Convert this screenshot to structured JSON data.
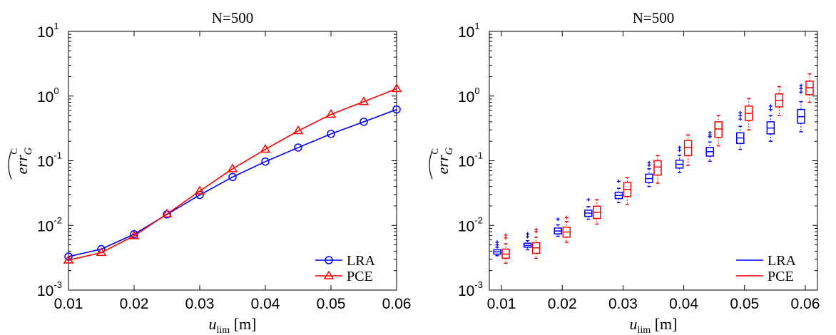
{
  "chart_data": [
    {
      "type": "line",
      "title": "N=500",
      "xlabel_var": "u",
      "xlabel_sub": "lim",
      "xlabel_unit": "[m]",
      "ylabel": "err",
      "ylabel_sub": "G",
      "ylabel_sup": "C",
      "x": [
        0.01,
        0.015,
        0.02,
        0.025,
        0.03,
        0.035,
        0.04,
        0.045,
        0.05,
        0.055,
        0.06
      ],
      "x_ticks": [
        "0.01",
        "0.02",
        "0.03",
        "0.04",
        "0.05",
        "0.06"
      ],
      "y_scale": "log",
      "y_ticks": [
        {
          "base": "10",
          "exp": "-3"
        },
        {
          "base": "10",
          "exp": "-2"
        },
        {
          "base": "10",
          "exp": "-1"
        },
        {
          "base": "10",
          "exp": "0"
        },
        {
          "base": "10",
          "exp": "1"
        }
      ],
      "xlim": [
        0.01,
        0.06
      ],
      "ylim": [
        0.001,
        10
      ],
      "grid": false,
      "legend_position": "bottom-right",
      "series": [
        {
          "name": "LRA",
          "color": "#0000ff",
          "marker": "circle",
          "values": [
            0.0033,
            0.0043,
            0.0073,
            0.0148,
            0.0295,
            0.056,
            0.097,
            0.16,
            0.26,
            0.4,
            0.62
          ]
        },
        {
          "name": "PCE",
          "color": "#ff0000",
          "marker": "triangle",
          "values": [
            0.0029,
            0.0038,
            0.0069,
            0.015,
            0.034,
            0.075,
            0.15,
            0.29,
            0.52,
            0.82,
            1.3
          ]
        }
      ]
    },
    {
      "type": "box",
      "title": "N=500",
      "xlabel_var": "u",
      "xlabel_sub": "lim",
      "xlabel_unit": "[m]",
      "ylabel": "err",
      "ylabel_sub": "G",
      "ylabel_sup": "C",
      "x": [
        0.01,
        0.015,
        0.02,
        0.025,
        0.03,
        0.035,
        0.04,
        0.045,
        0.05,
        0.055,
        0.06
      ],
      "x_ticks": [
        "0.01",
        "0.02",
        "0.03",
        "0.04",
        "0.05",
        "0.06"
      ],
      "y_scale": "log",
      "y_ticks": [
        {
          "base": "10",
          "exp": "-3"
        },
        {
          "base": "10",
          "exp": "-2"
        },
        {
          "base": "10",
          "exp": "-1"
        },
        {
          "base": "10",
          "exp": "0"
        },
        {
          "base": "10",
          "exp": "1"
        }
      ],
      "xlim": [
        0.008,
        0.062
      ],
      "ylim": [
        0.001,
        10
      ],
      "grid": false,
      "legend_position": "bottom-right",
      "series": [
        {
          "name": "LRA",
          "color": "#0000ff",
          "boxes": [
            {
              "lo": 0.0034,
              "q1": 0.0036,
              "med": 0.0039,
              "q3": 0.0042,
              "hi": 0.0046,
              "out": [
                0.005,
                0.0055
              ]
            },
            {
              "lo": 0.0042,
              "q1": 0.0046,
              "med": 0.0049,
              "q3": 0.0053,
              "hi": 0.0058,
              "out": [
                0.0067,
                0.0074
              ]
            },
            {
              "lo": 0.0068,
              "q1": 0.0074,
              "med": 0.0082,
              "q3": 0.0091,
              "hi": 0.0102,
              "out": [
                0.0125
              ]
            },
            {
              "lo": 0.0125,
              "q1": 0.0138,
              "med": 0.0155,
              "q3": 0.0172,
              "hi": 0.0195,
              "out": [
                0.025
              ]
            },
            {
              "lo": 0.0225,
              "q1": 0.026,
              "med": 0.029,
              "q3": 0.0325,
              "hi": 0.0375,
              "out": [
                0.048
              ]
            },
            {
              "lo": 0.04,
              "q1": 0.046,
              "med": 0.053,
              "q3": 0.062,
              "hi": 0.075,
              "out": [
                0.085,
                0.093
              ]
            },
            {
              "lo": 0.066,
              "q1": 0.077,
              "med": 0.088,
              "q3": 0.102,
              "hi": 0.122,
              "out": [
                0.145,
                0.16
              ]
            },
            {
              "lo": 0.098,
              "q1": 0.118,
              "med": 0.138,
              "q3": 0.16,
              "hi": 0.195,
              "out": [
                0.235,
                0.25,
                0.27
              ]
            },
            {
              "lo": 0.15,
              "q1": 0.185,
              "med": 0.225,
              "q3": 0.27,
              "hi": 0.34,
              "out": [
                0.44,
                0.5,
                0.55
              ]
            },
            {
              "lo": 0.2,
              "q1": 0.26,
              "med": 0.32,
              "q3": 0.4,
              "hi": 0.5,
              "out": [
                0.62,
                0.7
              ]
            },
            {
              "lo": 0.28,
              "q1": 0.38,
              "med": 0.48,
              "q3": 0.62,
              "hi": 0.82,
              "out": [
                1.15,
                1.3,
                1.45
              ]
            }
          ]
        },
        {
          "name": "PCE",
          "color": "#ff0000",
          "boxes": [
            {
              "lo": 0.0026,
              "q1": 0.0031,
              "med": 0.0036,
              "q3": 0.0043,
              "hi": 0.0052,
              "out": [
                0.0064,
                0.0071
              ]
            },
            {
              "lo": 0.0031,
              "q1": 0.0037,
              "med": 0.0045,
              "q3": 0.0054,
              "hi": 0.0066,
              "out": [
                0.008,
                0.0087
              ]
            },
            {
              "lo": 0.0055,
              "q1": 0.0066,
              "med": 0.0079,
              "q3": 0.0094,
              "hi": 0.0115,
              "out": [
                0.0132
              ]
            },
            {
              "lo": 0.0105,
              "q1": 0.0128,
              "med": 0.016,
              "q3": 0.0198,
              "hi": 0.025,
              "out": []
            },
            {
              "lo": 0.021,
              "q1": 0.028,
              "med": 0.036,
              "q3": 0.046,
              "hi": 0.055,
              "out": []
            },
            {
              "lo": 0.045,
              "q1": 0.06,
              "med": 0.08,
              "q3": 0.1,
              "hi": 0.12,
              "out": []
            },
            {
              "lo": 0.085,
              "q1": 0.12,
              "med": 0.16,
              "q3": 0.205,
              "hi": 0.25,
              "out": []
            },
            {
              "lo": 0.17,
              "q1": 0.23,
              "med": 0.31,
              "q3": 0.4,
              "hi": 0.5,
              "out": []
            },
            {
              "lo": 0.3,
              "q1": 0.42,
              "med": 0.54,
              "q3": 0.7,
              "hi": 0.92,
              "out": []
            },
            {
              "lo": 0.5,
              "q1": 0.68,
              "med": 0.86,
              "q3": 1.08,
              "hi": 1.4,
              "out": []
            },
            {
              "lo": 0.8,
              "q1": 1.05,
              "med": 1.35,
              "q3": 1.7,
              "hi": 2.2,
              "out": []
            }
          ]
        }
      ]
    }
  ]
}
